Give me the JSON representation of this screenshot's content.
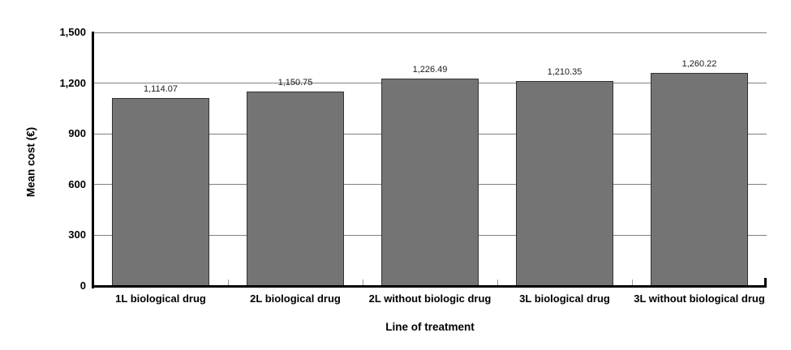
{
  "chart_data": {
    "type": "bar",
    "xlabel": "Line of treatment",
    "ylabel": "Mean cost (€)",
    "categories": [
      "1L biological drug",
      "2L biological drug",
      "2L without biologic drug",
      "3L biological drug",
      "3L without biological drug"
    ],
    "values": [
      1114.07,
      1150.75,
      1226.49,
      1210.35,
      1260.22
    ],
    "value_labels": [
      "1,114.07",
      "1,150.75",
      "1,226.49",
      "1,210.35",
      "1,260.22"
    ],
    "ylim": [
      0,
      1500
    ],
    "yticks": [
      0,
      300,
      600,
      900,
      1200,
      1500
    ],
    "ytick_labels": [
      "0",
      "300",
      "600",
      "900",
      "1,200",
      "1,500"
    ],
    "grid": "horizontal",
    "legend": "none",
    "colors": {
      "bar_fill": "#747474",
      "bar_border": "#333333",
      "gridline": "#808080",
      "axis": "#000000",
      "background": "#ffffff"
    }
  }
}
